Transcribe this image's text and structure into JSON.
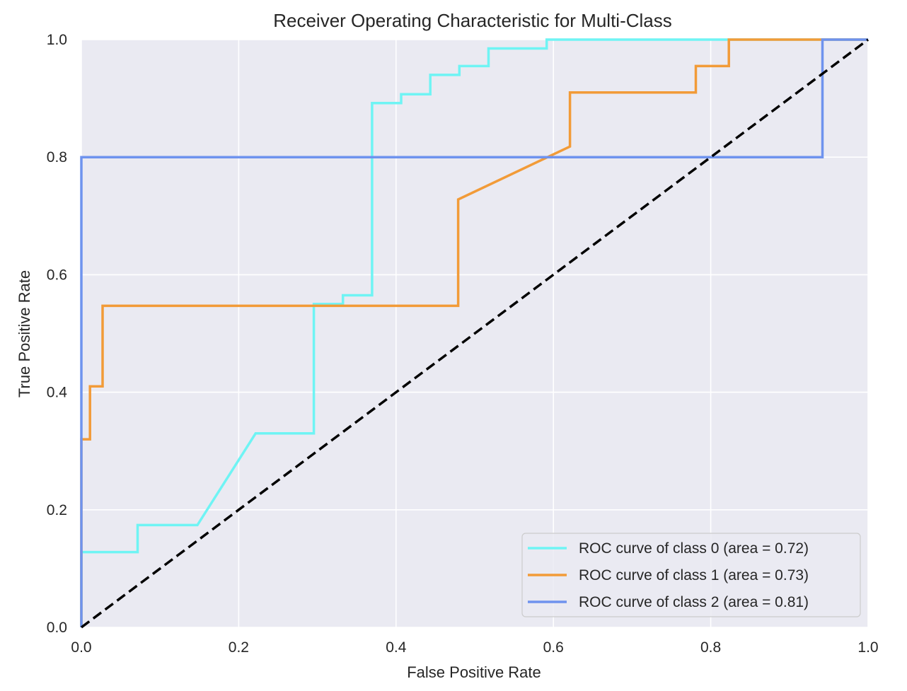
{
  "chart_data": {
    "type": "line",
    "title": "Receiver Operating Characteristic for Multi-Class",
    "xlabel": "False Positive Rate",
    "ylabel": "True Positive Rate",
    "xlim": [
      0.0,
      1.0
    ],
    "ylim": [
      0.0,
      1.0
    ],
    "xticks": [
      "0.0",
      "0.2",
      "0.4",
      "0.6",
      "0.8",
      "1.0"
    ],
    "yticks": [
      "0.0",
      "0.2",
      "0.4",
      "0.6",
      "0.8",
      "1.0"
    ],
    "grid": true,
    "legend_position": "lower-right",
    "background": "#eaeaf2",
    "series": [
      {
        "name": "ROC curve of class 0 (area = 0.72)",
        "color": "#6ff4f4",
        "points": [
          [
            0.0,
            0.0
          ],
          [
            0.0,
            0.128
          ],
          [
            0.0715,
            0.128
          ],
          [
            0.0715,
            0.174
          ],
          [
            0.1475,
            0.174
          ],
          [
            0.2215,
            0.33
          ],
          [
            0.2955,
            0.33
          ],
          [
            0.2955,
            0.55
          ],
          [
            0.3325,
            0.55
          ],
          [
            0.3325,
            0.565
          ],
          [
            0.3695,
            0.565
          ],
          [
            0.3695,
            0.892
          ],
          [
            0.4065,
            0.892
          ],
          [
            0.4065,
            0.907
          ],
          [
            0.4435,
            0.907
          ],
          [
            0.4435,
            0.94
          ],
          [
            0.4805,
            0.94
          ],
          [
            0.4805,
            0.955
          ],
          [
            0.5175,
            0.955
          ],
          [
            0.5175,
            0.985
          ],
          [
            0.5915,
            0.985
          ],
          [
            0.5915,
            1.0
          ],
          [
            0.826,
            1.0
          ],
          [
            1.0,
            1.0
          ]
        ]
      },
      {
        "name": "ROC curve of class 1 (area = 0.73)",
        "color": "#f29b38",
        "points": [
          [
            0.0,
            0.0
          ],
          [
            0.0,
            0.32
          ],
          [
            0.011,
            0.32
          ],
          [
            0.011,
            0.41
          ],
          [
            0.027,
            0.41
          ],
          [
            0.027,
            0.547
          ],
          [
            0.479,
            0.547
          ],
          [
            0.479,
            0.728
          ],
          [
            0.621,
            0.818
          ],
          [
            0.621,
            0.91
          ],
          [
            0.781,
            0.91
          ],
          [
            0.781,
            0.955
          ],
          [
            0.823,
            0.955
          ],
          [
            0.823,
            1.0
          ],
          [
            1.0,
            1.0
          ]
        ]
      },
      {
        "name": "ROC curve of class 2 (area = 0.81)",
        "color": "#6f93ee",
        "points": [
          [
            0.0,
            0.0
          ],
          [
            0.0,
            0.8
          ],
          [
            0.942,
            0.8
          ],
          [
            0.942,
            1.0
          ],
          [
            1.0,
            1.0
          ]
        ]
      }
    ],
    "diagonal": {
      "style": "dashed",
      "color": "#000000",
      "points": [
        [
          0.0,
          0.0
        ],
        [
          1.0,
          1.0
        ]
      ]
    }
  }
}
